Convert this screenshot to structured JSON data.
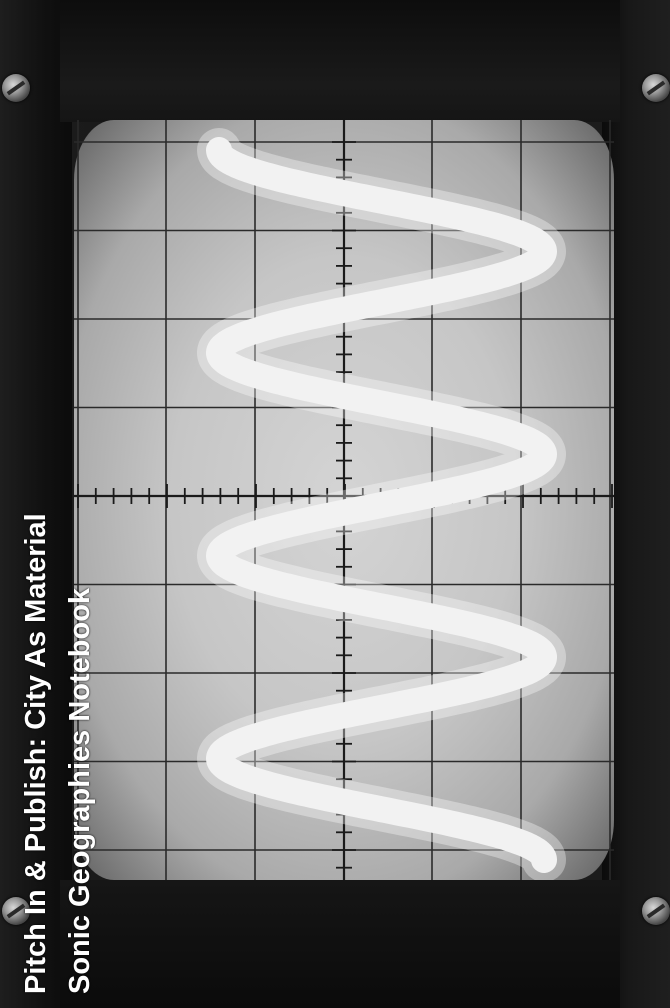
{
  "caption": {
    "title": "Pitch In & Publish: City As Material",
    "subtitle": "Sonic Geographies Notebook"
  },
  "scene": {
    "subject": "oscilloscope-screen",
    "trace_cycles": 3.5,
    "colors": {
      "caption_text": "#ffffff",
      "trace": "#f2f2f2",
      "screen": "#c8c8c8",
      "bezel": "#141414"
    }
  }
}
